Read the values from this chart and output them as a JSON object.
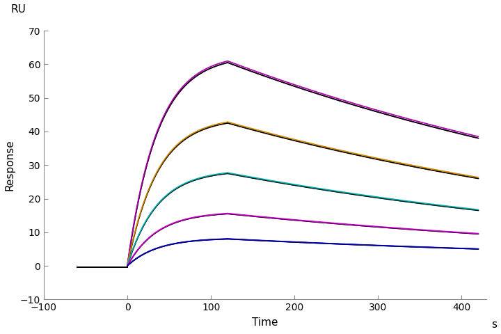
{
  "title": "",
  "xlabel": "Time",
  "ylabel": "Response",
  "ylabel2": "RU",
  "xlabel_unit": "s",
  "xlim": [
    -100,
    430
  ],
  "ylim": [
    -10,
    70
  ],
  "xticks": [
    -100,
    0,
    100,
    200,
    300,
    400
  ],
  "yticks": [
    -10,
    0,
    10,
    20,
    30,
    40,
    50,
    60,
    70
  ],
  "background_color": "#ffffff",
  "curves": [
    {
      "data_color": "#aa00aa",
      "association_peak": 60.5,
      "dissociation_end": 38.0,
      "ka": 0.028,
      "kd": 0.00115
    },
    {
      "data_color": "#cc8800",
      "association_peak": 42.5,
      "dissociation_end": 26.0,
      "ka": 0.028,
      "kd": 0.00115
    },
    {
      "data_color": "#00aaaa",
      "association_peak": 27.5,
      "dissociation_end": 16.5,
      "ka": 0.028,
      "kd": 0.00115
    },
    {
      "data_color": "#cc00cc",
      "association_peak": 15.5,
      "dissociation_end": 9.5,
      "ka": 0.028,
      "kd": 0.00115
    },
    {
      "data_color": "#0000bb",
      "association_peak": 8.0,
      "dissociation_end": 5.0,
      "ka": 0.028,
      "kd": 0.00115
    }
  ],
  "t_start": -60,
  "t_assoc_start": 0,
  "t_assoc_end": 120,
  "t_dissoc_end": 420,
  "fit_color": "#000000",
  "linewidth_data": 1.2,
  "linewidth_fit": 1.2,
  "spine_color": "#888888",
  "tick_labelsize": 10
}
